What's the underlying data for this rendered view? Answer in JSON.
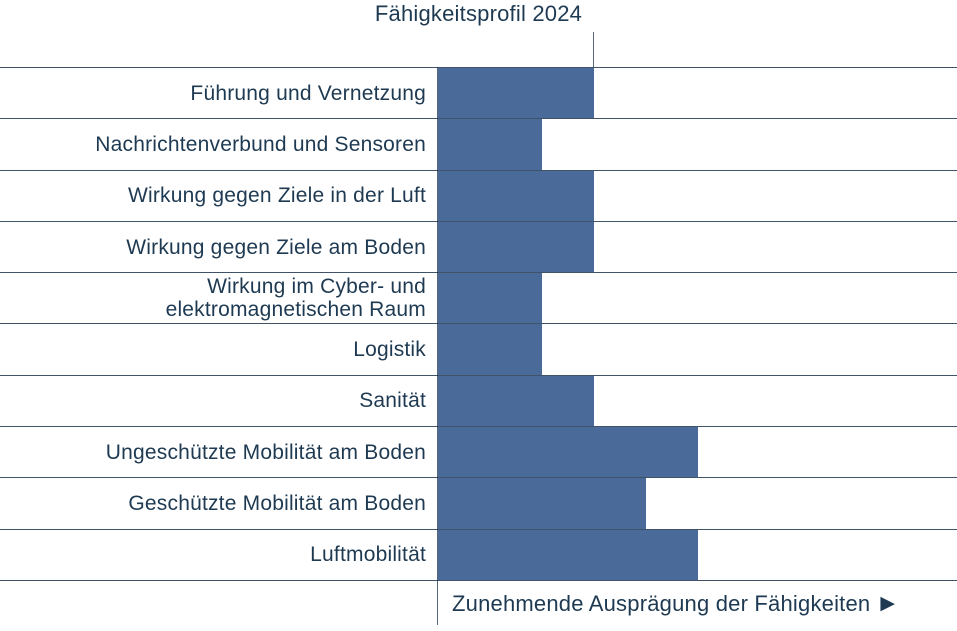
{
  "colors": {
    "ink": "#1e3a52",
    "bar": "#4a6b99",
    "grid": "rgba(16,40,66,0.8)",
    "axis": "rgba(16,40,66,0.7)"
  },
  "icons": {
    "arrow_right": "▶"
  },
  "chart_data": {
    "type": "bar",
    "orientation": "horizontal",
    "title": "Fähigkeitsprofil 2024",
    "categories": [
      "Führung und Vernetzung",
      "Nachrichtenverbund und Sensoren",
      "Wirkung gegen Ziele in der Luft",
      "Wirkung gegen Ziele am Boden",
      "Wirkung im Cyber- und elektromagnetischen Raum",
      "Logistik",
      "Sanität",
      "Ungeschützte Mobilität am Boden",
      "Geschützte Mobilität am Boden",
      "Luftmobilität"
    ],
    "values": [
      3,
      2,
      3,
      3,
      2,
      2,
      3,
      5,
      4,
      5
    ],
    "value_units": "relative capability level (unlabeled axis)",
    "xlim": [
      0,
      10
    ],
    "reference_line_value": 3,
    "grid": "horizontal-row-lines",
    "legend": "none",
    "xlabel": "Zunehmende Ausprägung der Fähigkeiten"
  }
}
